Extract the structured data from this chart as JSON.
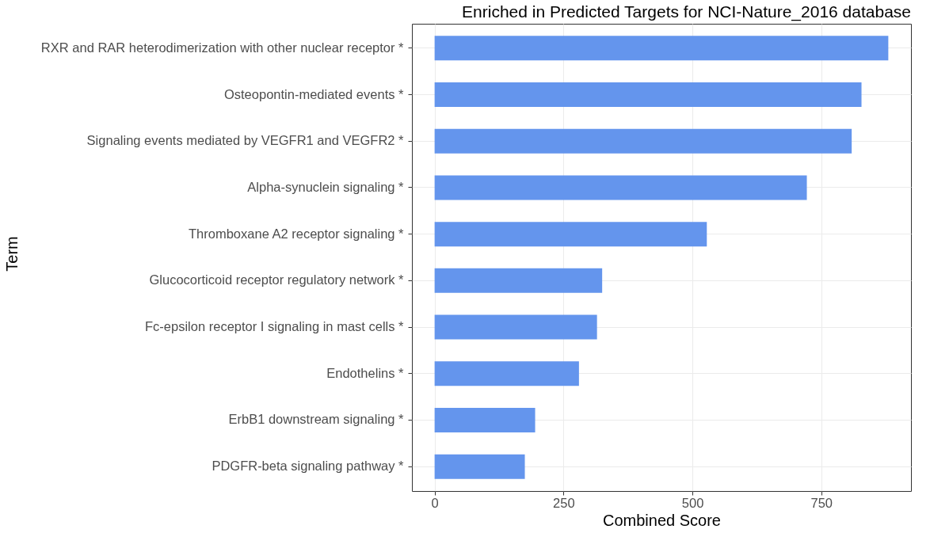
{
  "chart_data": {
    "type": "bar",
    "orientation": "horizontal",
    "title": "Enriched in Predicted Targets for NCI-Nature_2016 database",
    "xlabel": "Combined Score",
    "ylabel": "Term",
    "categories": [
      "RXR and RAR heterodimerization with other nuclear receptor *",
      "Osteopontin-mediated events *",
      "Signaling events mediated by VEGFR1 and VEGFR2 *",
      "Alpha-synuclein signaling *",
      "Thromboxane A2 receptor signaling *",
      "Glucocorticoid receptor regulatory network *",
      "Fc-epsilon receptor I signaling in mast cells *",
      "Endothelins *",
      "ErbB1 downstream signaling *",
      "PDGFR-beta signaling pathway *"
    ],
    "values": [
      880,
      828,
      809,
      722,
      528,
      325,
      315,
      280,
      195,
      175
    ],
    "color": "#6495ed",
    "xlim": [
      -44,
      924
    ],
    "xticks": [
      0,
      250,
      500,
      750
    ],
    "grid": true
  }
}
